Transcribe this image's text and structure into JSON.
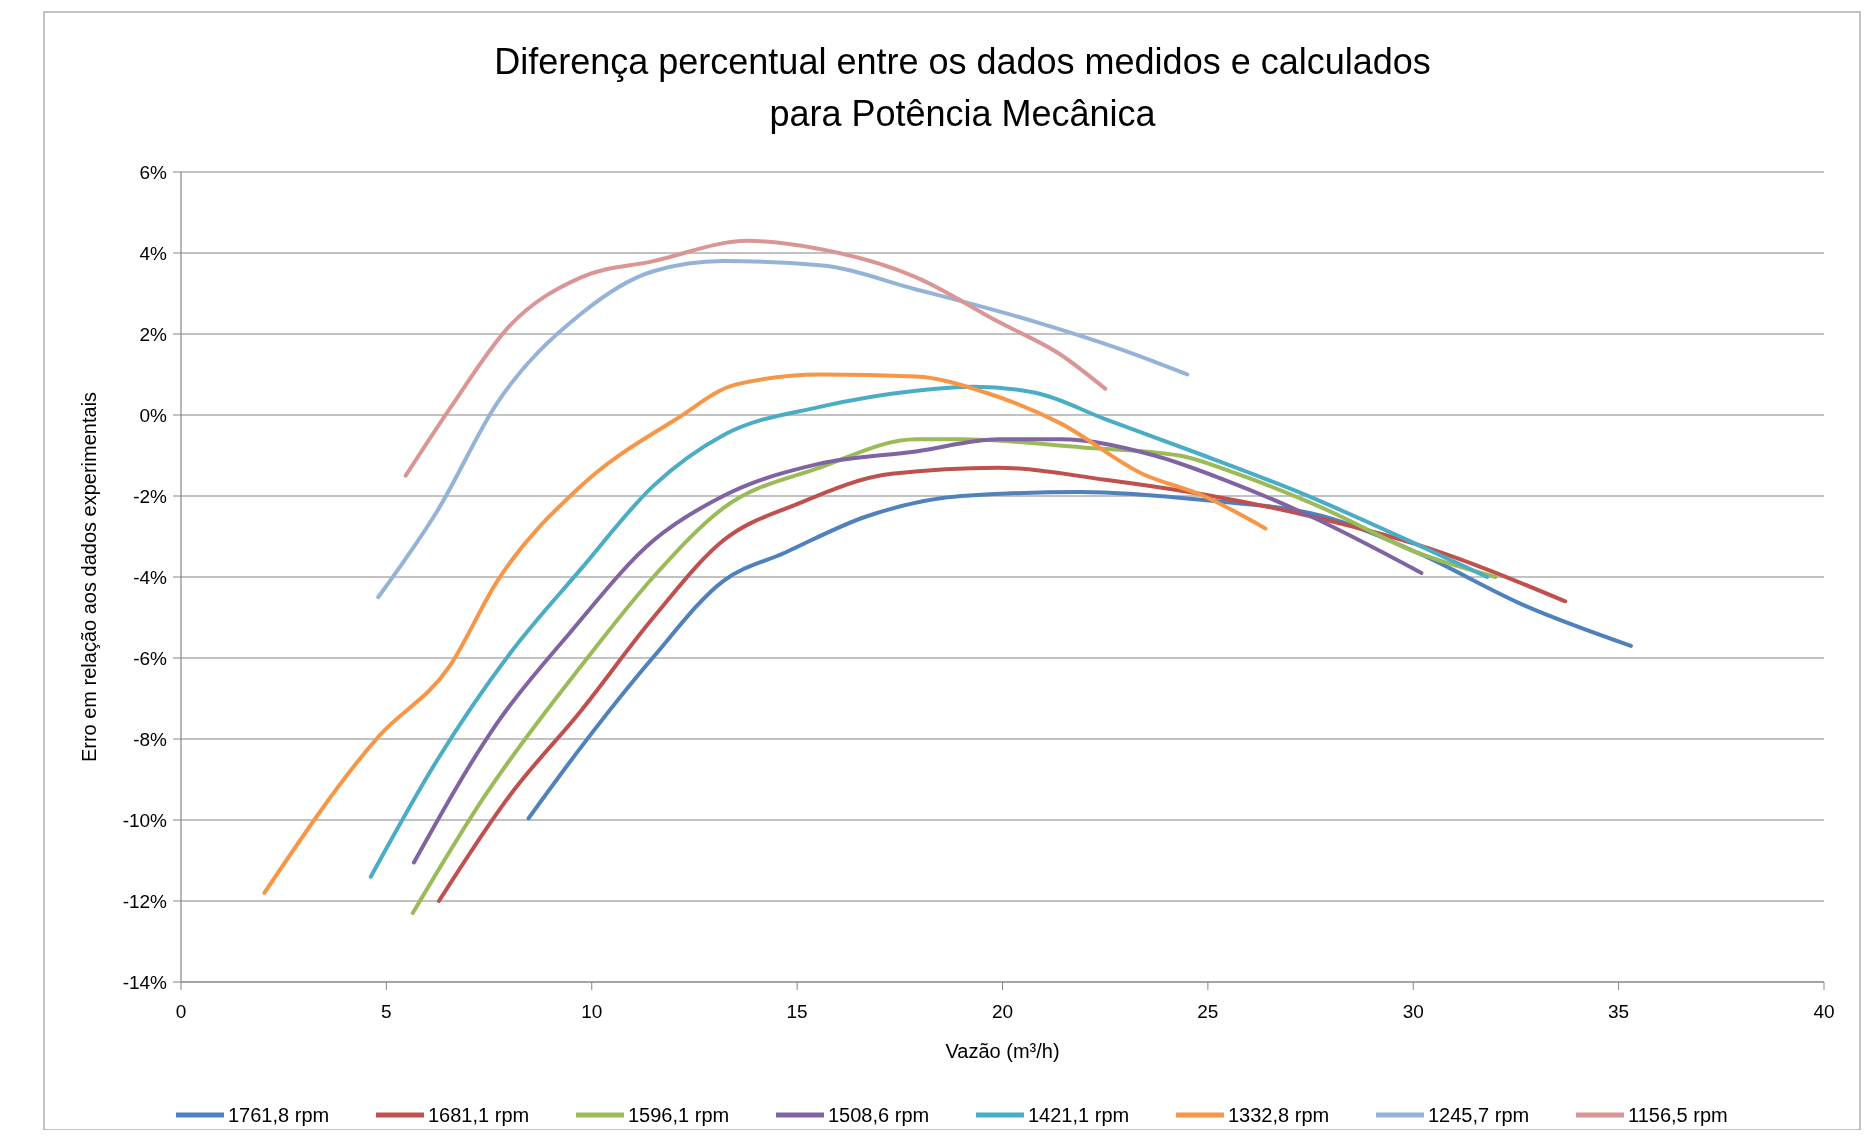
{
  "chart_data": {
    "type": "line",
    "title": "Diferença percentual entre os dados  medidos e calculados\npara Potência Mecânica",
    "xlabel": "Vazão  (m³/h)",
    "ylabel": "Erro em relação aos dados  experimentais",
    "xlim": [
      0,
      40
    ],
    "xticks": [
      0,
      5,
      10,
      15,
      20,
      25,
      30,
      35,
      40
    ],
    "ylim": [
      -14,
      6
    ],
    "yticks": [
      {
        "value": -14,
        "label": "-14%"
      },
      {
        "value": -12,
        "label": "-12%"
      },
      {
        "value": -10,
        "label": "-10%"
      },
      {
        "value": -8,
        "label": "-8%"
      },
      {
        "value": -6,
        "label": "-6%"
      },
      {
        "value": -4,
        "label": "-4%"
      },
      {
        "value": -2,
        "label": "-2%"
      },
      {
        "value": 0,
        "label": "0%"
      },
      {
        "value": 2,
        "label": "2%"
      },
      {
        "value": 4,
        "label": "4%"
      },
      {
        "value": 6,
        "label": "6%"
      }
    ],
    "grid": "y",
    "legend": "bottom",
    "marker": "none",
    "line_style": "solid",
    "series": [
      {
        "name": "1761,8 rpm",
        "color": "#4f81bd",
        "x": [
          8.46,
          9.74,
          11.48,
          13.2,
          14.7,
          16.7,
          19.0,
          21.9,
          24.9,
          27.8,
          30.1,
          32.7,
          35.3
        ],
        "values": [
          -9.96,
          -8.2,
          -6.0,
          -4.1,
          -3.4,
          -2.5,
          -2.0,
          -1.9,
          -2.1,
          -2.5,
          -3.4,
          -4.7,
          -5.7
        ]
      },
      {
        "name": "1681,1 rpm",
        "color": "#c0504d",
        "x": [
          6.28,
          8.0,
          9.74,
          11.5,
          13.2,
          15.0,
          17.3,
          19.9,
          22.5,
          25.1,
          27.5,
          30.1,
          33.7
        ],
        "values": [
          -12.0,
          -9.4,
          -7.3,
          -5.0,
          -3.1,
          -2.2,
          -1.45,
          -1.3,
          -1.6,
          -2.0,
          -2.5,
          -3.2,
          -4.6
        ]
      },
      {
        "name": "1596,1 rpm",
        "color": "#9bbb59",
        "x": [
          5.64,
          7.4,
          9.74,
          11.5,
          13.2,
          15.55,
          17.9,
          19.0,
          21.95,
          24.3,
          25.7,
          27.8,
          30.1,
          32.0
        ],
        "values": [
          -12.3,
          -9.4,
          -6.2,
          -4.0,
          -2.3,
          -1.3,
          -0.6,
          -0.6,
          -0.8,
          -1.0,
          -1.45,
          -2.3,
          -3.4,
          -4.0
        ]
      },
      {
        "name": "1508,6 rpm",
        "color": "#8064a2",
        "x": [
          5.67,
          7.7,
          9.45,
          11.5,
          13.2,
          15.55,
          17.9,
          19.9,
          21.4,
          23.7,
          25.4,
          27.5,
          30.2
        ],
        "values": [
          -11.05,
          -7.6,
          -5.4,
          -3.1,
          -2.0,
          -1.2,
          -0.9,
          -0.6,
          -0.6,
          -1.0,
          -1.6,
          -2.5,
          -3.9
        ]
      },
      {
        "name": "1421,1 rpm",
        "color": "#4bacc6",
        "x": [
          4.62,
          6.25,
          8.0,
          9.74,
          11.5,
          13.2,
          15.55,
          17.9,
          19.3,
          20.8,
          22.5,
          24.9,
          27.2,
          30.1,
          31.8
        ],
        "values": [
          -11.4,
          -8.5,
          -5.9,
          -3.8,
          -1.75,
          -0.5,
          0.2,
          0.6,
          0.7,
          0.55,
          -0.1,
          -1.0,
          -1.9,
          -3.2,
          -4.0
        ]
      },
      {
        "name": "1332,8 rpm",
        "color": "#f79646",
        "x": [
          2.03,
          4.8,
          6.54,
          7.7,
          9.74,
          12.06,
          13.5,
          15.55,
          17.9,
          19.6,
          21.4,
          23.4,
          24.9,
          26.4
        ],
        "values": [
          -11.8,
          -7.95,
          -6.2,
          -4.1,
          -1.75,
          -0.1,
          0.75,
          1.0,
          0.95,
          0.55,
          -0.2,
          -1.45,
          -2.0,
          -2.8
        ]
      },
      {
        "name": "1245,7 rpm",
        "color": "#95b3d7",
        "x": [
          4.8,
          6.25,
          7.7,
          9.74,
          11.5,
          13.2,
          15.55,
          17.9,
          20.8,
          22.8,
          24.5
        ],
        "values": [
          -4.5,
          -2.35,
          0.3,
          2.5,
          3.55,
          3.8,
          3.7,
          3.1,
          2.3,
          1.65,
          1.0
        ]
      },
      {
        "name": "1156,5 rpm",
        "color": "#d99694",
        "x": [
          5.47,
          6.54,
          8.0,
          9.74,
          11.5,
          13.8,
          15.55,
          17.9,
          19.9,
          21.4,
          22.5
        ],
        "values": [
          -1.5,
          0.15,
          2.2,
          3.4,
          3.8,
          4.3,
          4.1,
          3.4,
          2.3,
          1.5,
          0.65
        ]
      }
    ]
  }
}
